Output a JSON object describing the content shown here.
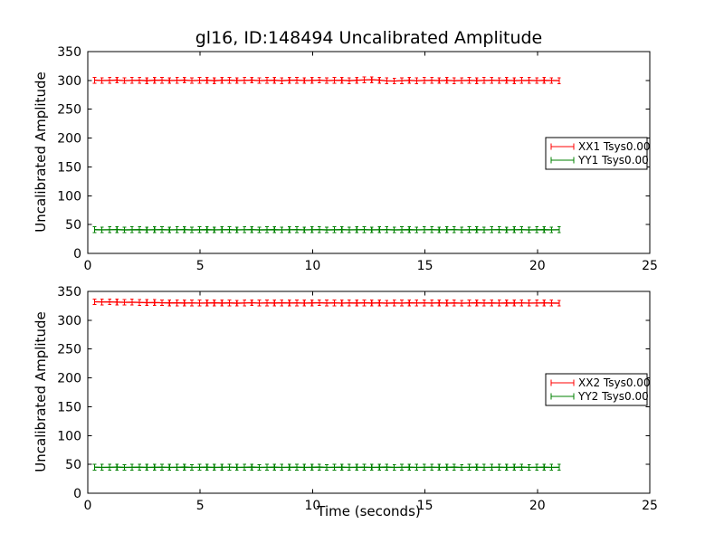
{
  "figure": {
    "background": "#ffffff"
  },
  "colors": {
    "series_red": "#ff0000",
    "series_green": "#008000",
    "axis": "#000000",
    "legend_border": "#000000",
    "legend_background": "#ffffff"
  },
  "chart_data": [
    {
      "type": "line",
      "title": "gl16, ID:148494 Uncalibrated Amplitude",
      "xlabel": "",
      "ylabel": "Uncalibrated Amplitude",
      "xlim": [
        0,
        25
      ],
      "ylim": [
        0,
        350
      ],
      "xticks": [
        0,
        5,
        10,
        15,
        20,
        25
      ],
      "yticks": [
        0,
        50,
        100,
        150,
        200,
        250,
        300,
        350
      ],
      "grid": false,
      "legend_position": "center right",
      "x": [
        0.3,
        0.63,
        0.97,
        1.3,
        1.63,
        1.97,
        2.3,
        2.63,
        2.97,
        3.3,
        3.63,
        3.97,
        4.3,
        4.63,
        4.97,
        5.3,
        5.63,
        5.97,
        6.3,
        6.63,
        6.97,
        7.3,
        7.63,
        7.97,
        8.3,
        8.63,
        8.97,
        9.3,
        9.63,
        9.97,
        10.3,
        10.63,
        10.97,
        11.3,
        11.63,
        11.97,
        12.3,
        12.63,
        12.97,
        13.3,
        13.63,
        13.97,
        14.3,
        14.63,
        14.97,
        15.3,
        15.63,
        15.97,
        16.3,
        16.63,
        16.97,
        17.3,
        17.63,
        17.97,
        18.3,
        18.63,
        18.97,
        19.3,
        19.63,
        19.97,
        20.3,
        20.63,
        20.97
      ],
      "series": [
        {
          "name": "XX1 Tsys0.00",
          "color": "#ff0000",
          "yerr": 5,
          "values": [
            300.4,
            299.8,
            300.1,
            300.5,
            299.7,
            300.0,
            300.3,
            299.6,
            300.2,
            300.4,
            299.8,
            300.1,
            300.5,
            299.7,
            300.0,
            300.3,
            299.6,
            300.2,
            300.4,
            299.8,
            300.1,
            300.5,
            299.7,
            300.0,
            300.3,
            299.6,
            300.2,
            300.4,
            299.8,
            300.1,
            300.5,
            299.7,
            300.0,
            300.3,
            299.6,
            300.2,
            300.9,
            301.2,
            300.4,
            299.3,
            298.9,
            299.6,
            300.1,
            299.5,
            299.9,
            300.2,
            299.7,
            300.0,
            299.5,
            299.8,
            300.1,
            299.6,
            299.9,
            300.2,
            299.8,
            300.0,
            299.6,
            299.9,
            300.1,
            299.7,
            300.0,
            299.8,
            299.6
          ]
        },
        {
          "name": "YY1 Tsys0.00",
          "color": "#008000",
          "yerr": 5,
          "values": [
            41.2,
            40.9,
            41.1,
            41.3,
            40.8,
            41.0,
            41.2,
            40.9,
            41.1,
            41.2,
            40.9,
            41.1,
            41.3,
            40.8,
            41.0,
            41.2,
            40.9,
            41.1,
            41.2,
            40.9,
            41.1,
            41.3,
            40.8,
            41.0,
            41.2,
            40.9,
            41.1,
            41.2,
            40.9,
            41.1,
            41.3,
            40.8,
            41.0,
            41.2,
            40.9,
            41.1,
            41.2,
            40.9,
            41.1,
            41.3,
            40.8,
            41.0,
            41.2,
            40.9,
            41.1,
            41.2,
            40.9,
            41.1,
            41.3,
            40.8,
            41.0,
            41.2,
            40.9,
            41.1,
            41.2,
            40.9,
            41.1,
            41.3,
            40.8,
            41.0,
            41.2,
            40.9,
            41.1
          ]
        }
      ]
    },
    {
      "type": "line",
      "title": "",
      "xlabel": "Time (seconds)",
      "ylabel": "Uncalibrated Amplitude",
      "xlim": [
        0,
        25
      ],
      "ylim": [
        0,
        350
      ],
      "xticks": [
        0,
        5,
        10,
        15,
        20,
        25
      ],
      "yticks": [
        0,
        50,
        100,
        150,
        200,
        250,
        300,
        350
      ],
      "grid": false,
      "legend_position": "center right",
      "x": [
        0.3,
        0.63,
        0.97,
        1.3,
        1.63,
        1.97,
        2.3,
        2.63,
        2.97,
        3.3,
        3.63,
        3.97,
        4.3,
        4.63,
        4.97,
        5.3,
        5.63,
        5.97,
        6.3,
        6.63,
        6.97,
        7.3,
        7.63,
        7.97,
        8.3,
        8.63,
        8.97,
        9.3,
        9.63,
        9.97,
        10.3,
        10.63,
        10.97,
        11.3,
        11.63,
        11.97,
        12.3,
        12.63,
        12.97,
        13.3,
        13.63,
        13.97,
        14.3,
        14.63,
        14.97,
        15.3,
        15.63,
        15.97,
        16.3,
        16.63,
        16.97,
        17.3,
        17.63,
        17.97,
        18.3,
        18.63,
        18.97,
        19.3,
        19.63,
        19.97,
        20.3,
        20.63,
        20.97
      ],
      "series": [
        {
          "name": "XX2 Tsys0.00",
          "color": "#ff0000",
          "yerr": 5,
          "values": [
            332.0,
            331.7,
            331.9,
            331.4,
            331.1,
            331.3,
            330.8,
            330.5,
            330.7,
            330.3,
            330.0,
            330.2,
            329.8,
            330.1,
            329.7,
            329.9,
            330.2,
            329.8,
            330.0,
            329.6,
            329.9,
            330.3,
            329.7,
            330.1,
            329.8,
            330.2,
            329.9,
            330.1,
            329.7,
            330.0,
            330.3,
            329.8,
            330.1,
            329.7,
            330.0,
            329.8,
            330.2,
            329.8,
            330.1,
            329.6,
            330.0,
            329.7,
            330.2,
            329.9,
            330.1,
            329.8,
            330.1,
            329.7,
            330.0,
            329.6,
            329.9,
            330.2,
            329.8,
            330.0,
            329.7,
            330.0,
            329.8,
            330.1,
            329.7,
            329.9,
            330.1,
            329.8,
            329.6
          ]
        },
        {
          "name": "YY2 Tsys0.00",
          "color": "#008000",
          "yerr": 5,
          "values": [
            45.2,
            44.9,
            45.1,
            45.3,
            44.8,
            45.0,
            45.2,
            44.9,
            45.1,
            45.2,
            44.9,
            45.1,
            45.3,
            44.8,
            45.0,
            45.2,
            44.9,
            45.1,
            45.2,
            44.9,
            45.1,
            45.3,
            44.8,
            45.0,
            45.2,
            44.9,
            45.1,
            45.2,
            44.9,
            45.1,
            45.3,
            44.8,
            45.0,
            45.2,
            44.9,
            45.1,
            45.2,
            44.9,
            45.1,
            45.3,
            44.8,
            45.0,
            45.2,
            44.9,
            45.1,
            45.2,
            44.9,
            45.1,
            45.3,
            44.8,
            45.0,
            45.2,
            44.9,
            45.1,
            45.2,
            44.9,
            45.1,
            45.3,
            44.8,
            45.0,
            45.2,
            44.9,
            45.1
          ]
        }
      ]
    }
  ]
}
